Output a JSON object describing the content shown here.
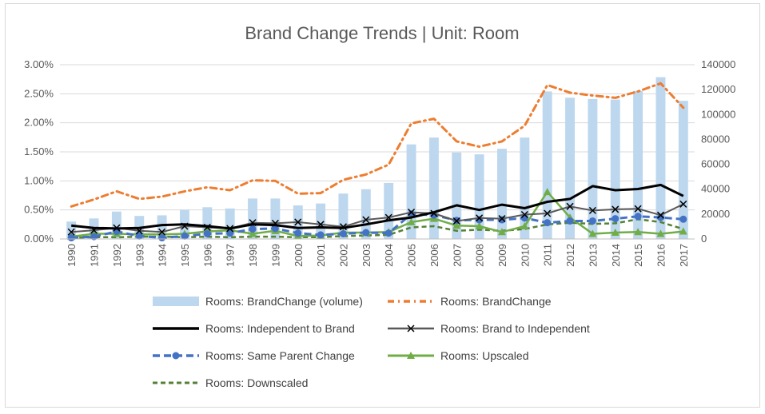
{
  "chart_data": {
    "type": "bar",
    "title": "Brand Change Trends | Unit: Room",
    "categories": [
      "1990",
      "1991",
      "1992",
      "1993",
      "1994",
      "1995",
      "1996",
      "1997",
      "1998",
      "1999",
      "2000",
      "2001",
      "2002",
      "2003",
      "2004",
      "2005",
      "2006",
      "2007",
      "2008",
      "2009",
      "2010",
      "2011",
      "2012",
      "2013",
      "2014",
      "2015",
      "2016",
      "2017"
    ],
    "y_left": {
      "ticks": [
        "0.00%",
        "0.50%",
        "1.00%",
        "1.50%",
        "2.00%",
        "2.50%",
        "3.00%"
      ],
      "ylim": [
        0,
        0.03
      ]
    },
    "y_right": {
      "ticks": [
        "0",
        "20000",
        "40000",
        "60000",
        "80000",
        "100000",
        "120000",
        "140000"
      ],
      "ylim": [
        0,
        140000
      ]
    },
    "grid": true,
    "legend_position": "bottom",
    "series": [
      {
        "name": "Rooms:  BrandChange (volume)",
        "type": "bar",
        "axis": "right",
        "color": "#bdd7ee",
        "values": [
          14000,
          16500,
          22000,
          18500,
          19000,
          23500,
          25500,
          24500,
          32500,
          32500,
          27000,
          28500,
          36500,
          40000,
          45000,
          76000,
          81500,
          69500,
          68000,
          72500,
          81500,
          118500,
          113500,
          112500,
          112000,
          119000,
          130000,
          111000
        ]
      },
      {
        "name": "Rooms:  BrandChange",
        "type": "line",
        "axis": "left",
        "color": "#ed7d31",
        "style": "dash-dot",
        "values": [
          0.0056,
          0.0068,
          0.0082,
          0.0069,
          0.0073,
          0.0082,
          0.0089,
          0.0084,
          0.0101,
          0.01,
          0.0078,
          0.0079,
          0.0102,
          0.0111,
          0.0128,
          0.0199,
          0.0207,
          0.0168,
          0.0159,
          0.0168,
          0.0195,
          0.0265,
          0.0252,
          0.0247,
          0.0243,
          0.0254,
          0.0268,
          0.0226
        ]
      },
      {
        "name": "Rooms:  Independent to Brand",
        "type": "line",
        "axis": "left",
        "color": "#000000",
        "style": "solid",
        "values": [
          0.0023,
          0.0019,
          0.0018,
          0.0019,
          0.0024,
          0.0025,
          0.0022,
          0.0018,
          0.0025,
          0.0024,
          0.0019,
          0.002,
          0.0019,
          0.0025,
          0.0032,
          0.0037,
          0.0046,
          0.0058,
          0.005,
          0.0059,
          0.0053,
          0.0064,
          0.0069,
          0.0091,
          0.0084,
          0.0086,
          0.0093,
          0.0074
        ]
      },
      {
        "name": "Rooms:  Brand to Independent",
        "type": "line",
        "axis": "left",
        "color": "#595959",
        "style": "solid-x",
        "values": [
          0.0012,
          0.0015,
          0.0019,
          0.0014,
          0.0012,
          0.0022,
          0.002,
          0.0018,
          0.0028,
          0.0027,
          0.0029,
          0.0025,
          0.0021,
          0.0033,
          0.0037,
          0.0046,
          0.0044,
          0.0031,
          0.0036,
          0.0035,
          0.0042,
          0.0044,
          0.0056,
          0.0049,
          0.0051,
          0.0052,
          0.0041,
          0.006
        ]
      },
      {
        "name": "Rooms:  Same Parent Change",
        "type": "line",
        "axis": "left",
        "color": "#4472c4",
        "style": "dash-circle",
        "values": [
          0.0002,
          0.0004,
          0.0013,
          0.0005,
          0.0002,
          0.0005,
          0.0009,
          0.001,
          0.0017,
          0.0018,
          0.001,
          0.0007,
          0.0009,
          0.0011,
          0.001,
          0.0043,
          0.0041,
          0.0032,
          0.0033,
          0.0033,
          0.0036,
          0.0028,
          0.0031,
          0.0031,
          0.0035,
          0.0039,
          0.0037,
          0.0034
        ]
      },
      {
        "name": "Rooms:  Upscaled",
        "type": "line",
        "axis": "left",
        "color": "#70ad47",
        "style": "solid-triangle",
        "values": [
          0.0004,
          0.0009,
          0.0009,
          0.0008,
          0.0008,
          0.0009,
          0.0013,
          0.0015,
          0.0009,
          0.0014,
          0.0005,
          0.0006,
          0.0011,
          0.0011,
          0.0012,
          0.0029,
          0.0035,
          0.0023,
          0.0022,
          0.0012,
          0.0022,
          0.0081,
          0.0037,
          0.0009,
          0.0011,
          0.0012,
          0.0009,
          0.0013
        ]
      },
      {
        "name": "Rooms:  Downscaled",
        "type": "line",
        "axis": "left",
        "color": "#538135",
        "style": "dash",
        "values": [
          0.0002,
          0.0003,
          0.0003,
          0.0004,
          0.0004,
          0.0003,
          0.0004,
          0.0003,
          0.0004,
          0.0004,
          0.0003,
          0.0003,
          0.0005,
          0.0006,
          0.0007,
          0.002,
          0.0022,
          0.0014,
          0.0016,
          0.0014,
          0.0017,
          0.0025,
          0.0028,
          0.0026,
          0.0027,
          0.0034,
          0.0029,
          0.0017
        ]
      }
    ]
  }
}
